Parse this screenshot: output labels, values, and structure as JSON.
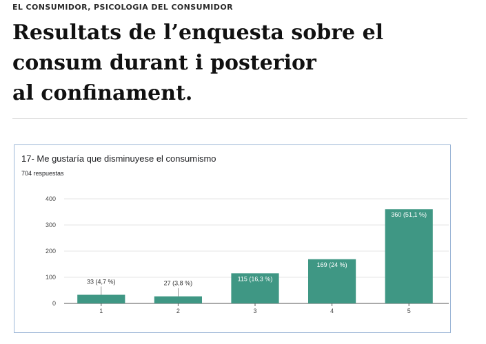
{
  "article": {
    "category": "EL CONSUMIDOR, PSICOLOGIA DEL CONSUMIDOR",
    "title_lines": [
      "Resultats de l’enquesta sobre el",
      "consum durant i posterior",
      "al confinament."
    ]
  },
  "colors": {
    "bar": "#3f9784",
    "card_border": "#9bb5d6",
    "grid": "#e6e6e6"
  },
  "chart_data": {
    "type": "bar",
    "title": "17- Me gustaría que disminuyese el consumismo",
    "subtitle": "704 respuestas",
    "categories": [
      "1",
      "2",
      "3",
      "4",
      "5"
    ],
    "values": [
      33,
      27,
      115,
      169,
      360
    ],
    "data_labels": [
      "33 (4,7 %)",
      "27 (3,8 %)",
      "115 (16,3 %)",
      "169 (24 %)",
      "360 (51,1 %)"
    ],
    "ylim": [
      0,
      400
    ],
    "yticks": [
      "0",
      "100",
      "200",
      "300",
      "400"
    ],
    "grid": true,
    "xlabel": "",
    "ylabel": ""
  }
}
